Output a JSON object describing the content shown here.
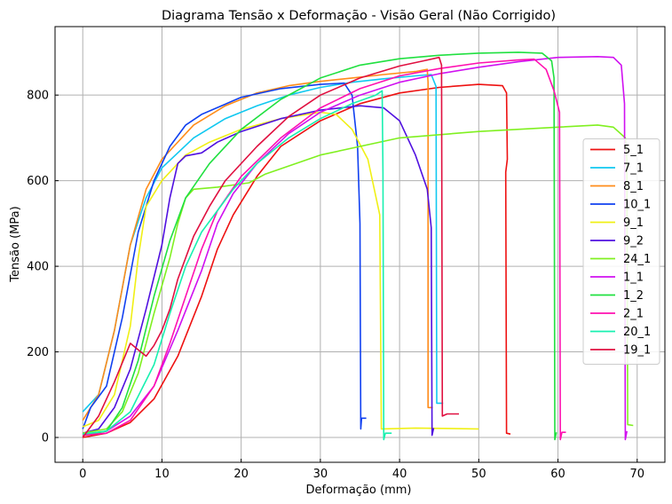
{
  "chart_data": {
    "type": "line",
    "title": "Diagrama Tensão x Deformação - Visão Geral (Não Corrigido)",
    "xlabel": "Deformação (mm)",
    "ylabel": "Tensão (MPa)",
    "xlim": [
      -3.5,
      73.5
    ],
    "ylim": [
      -58,
      960
    ],
    "xticks": [
      0,
      10,
      20,
      30,
      40,
      50,
      60,
      70
    ],
    "yticks": [
      0,
      200,
      400,
      600,
      800
    ],
    "grid": true,
    "legend_position": "center-right",
    "series": [
      {
        "name": "5_1",
        "color": "#ee1111",
        "points": [
          [
            0,
            0
          ],
          [
            3,
            10
          ],
          [
            6,
            35
          ],
          [
            9,
            90
          ],
          [
            12,
            190
          ],
          [
            15,
            330
          ],
          [
            17,
            440
          ],
          [
            19,
            520
          ],
          [
            22,
            610
          ],
          [
            25,
            680
          ],
          [
            30,
            740
          ],
          [
            35,
            780
          ],
          [
            40,
            805
          ],
          [
            45,
            818
          ],
          [
            50,
            825
          ],
          [
            53,
            822
          ],
          [
            53.5,
            805
          ],
          [
            53.6,
            650
          ],
          [
            53.4,
            620
          ],
          [
            53.5,
            10
          ],
          [
            54,
            8
          ]
        ]
      },
      {
        "name": "7_1",
        "color": "#10c8f0",
        "points": [
          [
            0,
            60
          ],
          [
            2,
            100
          ],
          [
            4,
            250
          ],
          [
            6,
            450
          ],
          [
            8,
            560
          ],
          [
            10,
            630
          ],
          [
            14,
            700
          ],
          [
            18,
            745
          ],
          [
            22,
            775
          ],
          [
            26,
            800
          ],
          [
            30,
            818
          ],
          [
            34,
            830
          ],
          [
            38,
            838
          ],
          [
            42,
            845
          ],
          [
            44,
            848
          ],
          [
            44.6,
            820
          ],
          [
            44.7,
            80
          ],
          [
            45.5,
            80
          ]
        ]
      },
      {
        "name": "8_1",
        "color": "#ff8c1a",
        "points": [
          [
            0,
            40
          ],
          [
            2,
            100
          ],
          [
            4,
            250
          ],
          [
            6,
            450
          ],
          [
            8,
            580
          ],
          [
            10,
            650
          ],
          [
            14,
            730
          ],
          [
            18,
            775
          ],
          [
            22,
            805
          ],
          [
            26,
            822
          ],
          [
            30,
            832
          ],
          [
            34,
            840
          ],
          [
            38,
            848
          ],
          [
            42,
            855
          ],
          [
            43.5,
            860
          ],
          [
            43.6,
            830
          ],
          [
            43.6,
            70
          ],
          [
            44.2,
            70
          ]
        ]
      },
      {
        "name": "10_1",
        "color": "#1040f0",
        "points": [
          [
            0,
            20
          ],
          [
            1,
            70
          ],
          [
            3,
            120
          ],
          [
            5,
            280
          ],
          [
            7,
            480
          ],
          [
            9,
            600
          ],
          [
            11,
            680
          ],
          [
            13,
            730
          ],
          [
            15,
            755
          ],
          [
            20,
            795
          ],
          [
            25,
            815
          ],
          [
            30,
            825
          ],
          [
            33,
            828
          ],
          [
            34,
            800
          ],
          [
            34.7,
            680
          ],
          [
            35,
            500
          ],
          [
            35.1,
            20
          ],
          [
            35.2,
            45
          ],
          [
            35.8,
            45
          ]
        ]
      },
      {
        "name": "9_1",
        "color": "#f0f015",
        "points": [
          [
            0,
            25
          ],
          [
            2,
            40
          ],
          [
            4,
            100
          ],
          [
            6,
            260
          ],
          [
            7,
            420
          ],
          [
            8,
            540
          ],
          [
            10,
            600
          ],
          [
            13,
            660
          ],
          [
            16,
            690
          ],
          [
            20,
            720
          ],
          [
            25,
            745
          ],
          [
            30,
            760
          ],
          [
            32,
            755
          ],
          [
            34,
            720
          ],
          [
            36,
            650
          ],
          [
            37.5,
            520
          ],
          [
            37.7,
            20
          ],
          [
            42,
            22
          ],
          [
            50,
            20
          ]
        ]
      },
      {
        "name": "9_2",
        "color": "#5010e0",
        "points": [
          [
            0,
            10
          ],
          [
            2,
            20
          ],
          [
            4,
            70
          ],
          [
            6,
            160
          ],
          [
            8,
            300
          ],
          [
            10,
            450
          ],
          [
            11,
            560
          ],
          [
            12,
            640
          ],
          [
            13,
            658
          ],
          [
            15,
            665
          ],
          [
            17,
            690
          ],
          [
            20,
            715
          ],
          [
            25,
            745
          ],
          [
            30,
            765
          ],
          [
            35,
            775
          ],
          [
            38,
            770
          ],
          [
            40,
            740
          ],
          [
            42,
            660
          ],
          [
            43.5,
            580
          ],
          [
            44,
            490
          ],
          [
            44.1,
            5
          ],
          [
            44.3,
            22
          ]
        ]
      },
      {
        "name": "24_1",
        "color": "#80f020",
        "points": [
          [
            0,
            10
          ],
          [
            3,
            20
          ],
          [
            5,
            60
          ],
          [
            7,
            150
          ],
          [
            9,
            290
          ],
          [
            11,
            420
          ],
          [
            12,
            500
          ],
          [
            13,
            560
          ],
          [
            14,
            580
          ],
          [
            17,
            585
          ],
          [
            19,
            590
          ],
          [
            21,
            595
          ],
          [
            23,
            615
          ],
          [
            30,
            660
          ],
          [
            40,
            700
          ],
          [
            50,
            715
          ],
          [
            60,
            725
          ],
          [
            65,
            730
          ],
          [
            67,
            725
          ],
          [
            68.5,
            700
          ],
          [
            68.7,
            650
          ],
          [
            68.8,
            30
          ],
          [
            69.5,
            28
          ]
        ]
      },
      {
        "name": "1_1",
        "color": "#d010f0",
        "points": [
          [
            0,
            5
          ],
          [
            3,
            15
          ],
          [
            6,
            50
          ],
          [
            9,
            120
          ],
          [
            12,
            250
          ],
          [
            15,
            390
          ],
          [
            17,
            500
          ],
          [
            19,
            570
          ],
          [
            22,
            640
          ],
          [
            26,
            710
          ],
          [
            30,
            760
          ],
          [
            35,
            800
          ],
          [
            40,
            830
          ],
          [
            45,
            850
          ],
          [
            50,
            865
          ],
          [
            55,
            878
          ],
          [
            60,
            888
          ],
          [
            65,
            890
          ],
          [
            67,
            888
          ],
          [
            68,
            870
          ],
          [
            68.4,
            780
          ],
          [
            68.5,
            -5
          ],
          [
            68.7,
            15
          ]
        ]
      },
      {
        "name": "1_2",
        "color": "#20e040",
        "points": [
          [
            0,
            5
          ],
          [
            3,
            15
          ],
          [
            5,
            70
          ],
          [
            7,
            180
          ],
          [
            9,
            330
          ],
          [
            11,
            460
          ],
          [
            13,
            560
          ],
          [
            16,
            640
          ],
          [
            20,
            720
          ],
          [
            25,
            790
          ],
          [
            30,
            840
          ],
          [
            35,
            870
          ],
          [
            40,
            885
          ],
          [
            45,
            893
          ],
          [
            50,
            898
          ],
          [
            55,
            900
          ],
          [
            58,
            898
          ],
          [
            59.2,
            880
          ],
          [
            59.5,
            840
          ],
          [
            59.6,
            -5
          ],
          [
            59.8,
            12
          ]
        ]
      },
      {
        "name": "2_1",
        "color": "#ff10b0",
        "points": [
          [
            0,
            5
          ],
          [
            3,
            10
          ],
          [
            6,
            40
          ],
          [
            9,
            120
          ],
          [
            11,
            220
          ],
          [
            13,
            330
          ],
          [
            15,
            440
          ],
          [
            17,
            530
          ],
          [
            20,
            610
          ],
          [
            25,
            700
          ],
          [
            30,
            770
          ],
          [
            35,
            815
          ],
          [
            40,
            845
          ],
          [
            45,
            862
          ],
          [
            50,
            875
          ],
          [
            55,
            882
          ],
          [
            57,
            884
          ],
          [
            58.5,
            860
          ],
          [
            59.5,
            810
          ],
          [
            60.2,
            760
          ],
          [
            60.3,
            -5
          ],
          [
            60.5,
            12
          ],
          [
            61,
            12
          ]
        ]
      },
      {
        "name": "20_1",
        "color": "#18f0b0",
        "points": [
          [
            0,
            8
          ],
          [
            3,
            15
          ],
          [
            6,
            60
          ],
          [
            9,
            170
          ],
          [
            11,
            290
          ],
          [
            13,
            400
          ],
          [
            15,
            480
          ],
          [
            17,
            530
          ],
          [
            19,
            580
          ],
          [
            22,
            640
          ],
          [
            26,
            700
          ],
          [
            30,
            745
          ],
          [
            34,
            780
          ],
          [
            37,
            800
          ],
          [
            37.8,
            810
          ],
          [
            37.9,
            620
          ],
          [
            38,
            -5
          ],
          [
            38.2,
            10
          ],
          [
            39,
            10
          ]
        ]
      },
      {
        "name": "19_1",
        "color": "#e01040",
        "points": [
          [
            0,
            0
          ],
          [
            2,
            50
          ],
          [
            4,
            130
          ],
          [
            6,
            220
          ],
          [
            7,
            205
          ],
          [
            8,
            190
          ],
          [
            9,
            215
          ],
          [
            10,
            250
          ],
          [
            11,
            300
          ],
          [
            12,
            370
          ],
          [
            14,
            470
          ],
          [
            16,
            540
          ],
          [
            18,
            600
          ],
          [
            22,
            680
          ],
          [
            26,
            750
          ],
          [
            30,
            800
          ],
          [
            35,
            840
          ],
          [
            40,
            868
          ],
          [
            43,
            880
          ],
          [
            45,
            888
          ],
          [
            45.3,
            870
          ],
          [
            45.4,
            50
          ],
          [
            46,
            55
          ],
          [
            47.5,
            55
          ]
        ]
      }
    ]
  }
}
